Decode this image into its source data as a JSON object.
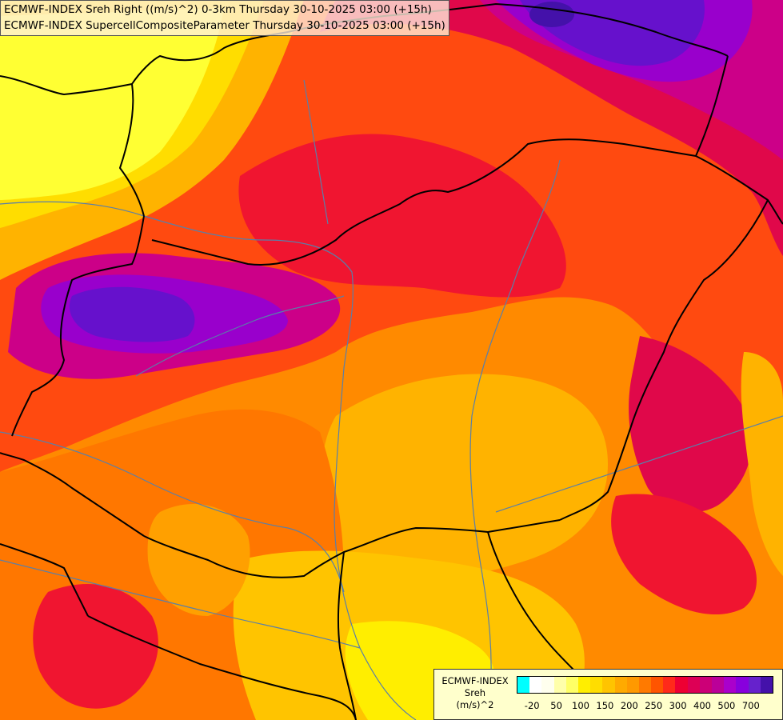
{
  "titles": {
    "line1": "ECMWF-INDEX Sreh Right ((m/s)^2) 0-3km Thursday 30-10-2025 03:00 (+15h)",
    "line2": "ECMWF-INDEX SupercellCompositeParameter Thursday 30-10-2025 03:00 (+15h)"
  },
  "legend": {
    "title_line1": "ECMWF-INDEX",
    "title_line2": "Sreh",
    "title_line3": "(m/s)^2",
    "ticks": [
      "-20",
      "50",
      "100",
      "150",
      "200",
      "250",
      "300",
      "400",
      "500",
      "700"
    ],
    "colors": [
      "#00ffff",
      "#ffffff",
      "#ffffee",
      "#ffffaa",
      "#ffff66",
      "#ffee00",
      "#ffdd00",
      "#ffc400",
      "#ffaa00",
      "#ff9900",
      "#ff7a00",
      "#ff5500",
      "#ff2a1a",
      "#ee0033",
      "#dd0055",
      "#cc0077",
      "#bb0099",
      "#aa00cc",
      "#8800dd",
      "#6622cc",
      "#4411aa"
    ]
  },
  "map_colors": {
    "background": "#ff8a00",
    "yellow": "#ffee00",
    "light_yellow": "#ffff33",
    "gold": "#ffb300",
    "orange": "#ff7700",
    "red_orange": "#ff4a10",
    "red": "#f01530",
    "crimson": "#e0084a",
    "magenta": "#cc0088",
    "purple": "#9900cc",
    "violet": "#6611cc",
    "indigo": "#4411aa",
    "border": "#000000",
    "river": "#5a7fa8"
  }
}
